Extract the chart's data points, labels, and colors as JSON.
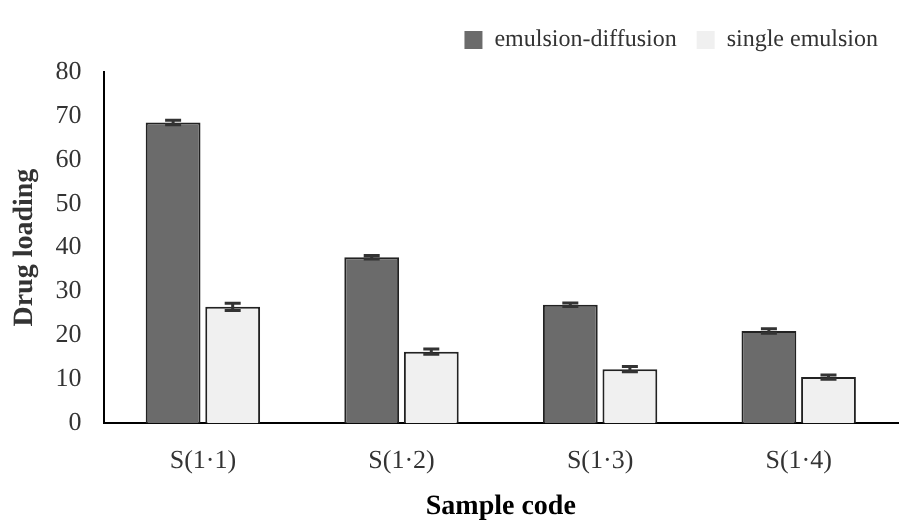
{
  "chart_data": {
    "type": "bar",
    "xlabel": "Sample code",
    "ylabel": "Drug loading",
    "categories": [
      "S(1·1)",
      "S(1·2)",
      "S(1·3)",
      "S(1·4)"
    ],
    "series": [
      {
        "name": "emulsion-diffusion",
        "color": "#6b6b6b",
        "values": [
          68.5,
          37.8,
          27,
          21
        ],
        "errors": [
          0.5,
          0.4,
          0.4,
          0.5
        ]
      },
      {
        "name": "single emulsion",
        "color": "#f0f0f0",
        "values": [
          26.5,
          16.3,
          12.3,
          10.5
        ],
        "errors": [
          0.8,
          0.6,
          0.6,
          0.5
        ]
      }
    ],
    "ylim": [
      0,
      80
    ],
    "yticks": [
      0,
      10,
      20,
      30,
      40,
      50,
      60,
      70,
      80
    ],
    "grid": false,
    "legend": "top right"
  }
}
